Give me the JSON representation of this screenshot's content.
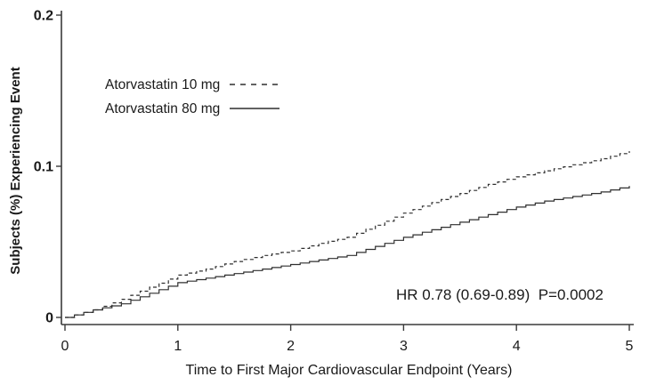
{
  "figure": {
    "annotation": "HR 0.78 (0.69-0.89)  P=0.0002"
  },
  "chart_data": {
    "type": "line",
    "subtype": "kaplan-meier-cumulative-incidence",
    "title": "",
    "xlabel": "Time to First Major Cardiovascular Endpoint (Years)",
    "ylabel": "Subjects (%) Experiencing Event",
    "xlim": [
      0,
      5
    ],
    "ylim": [
      0,
      0.2
    ],
    "x_ticks": [
      0,
      1,
      2,
      3,
      4,
      5
    ],
    "x_tick_labels": [
      "0",
      "1",
      "2",
      "3",
      "4",
      "5"
    ],
    "y_ticks": [
      0,
      0.1,
      0.2
    ],
    "y_tick_labels": [
      "0",
      "0.1",
      "0.2"
    ],
    "grid": false,
    "legend_position": "upper-left-inside",
    "annotation": "HR 0.78 (0.69-0.89)  P=0.0002",
    "x": [
      0,
      0.25,
      0.5,
      0.75,
      1,
      1.25,
      1.5,
      1.75,
      2,
      2.25,
      2.5,
      2.75,
      3,
      3.25,
      3.5,
      3.75,
      4,
      4.25,
      4.5,
      4.75,
      5
    ],
    "series": [
      {
        "name": "Atorvastatin 10 mg",
        "line_style": "dashed",
        "values": [
          0,
          0.005,
          0.012,
          0.02,
          0.028,
          0.032,
          0.037,
          0.041,
          0.044,
          0.049,
          0.053,
          0.061,
          0.069,
          0.076,
          0.082,
          0.088,
          0.093,
          0.097,
          0.101,
          0.105,
          0.11
        ]
      },
      {
        "name": "Atorvastatin 80 mg",
        "line_style": "solid",
        "values": [
          0,
          0.005,
          0.009,
          0.016,
          0.023,
          0.026,
          0.029,
          0.032,
          0.035,
          0.038,
          0.041,
          0.047,
          0.053,
          0.058,
          0.063,
          0.068,
          0.073,
          0.077,
          0.08,
          0.083,
          0.087
        ]
      }
    ]
  }
}
